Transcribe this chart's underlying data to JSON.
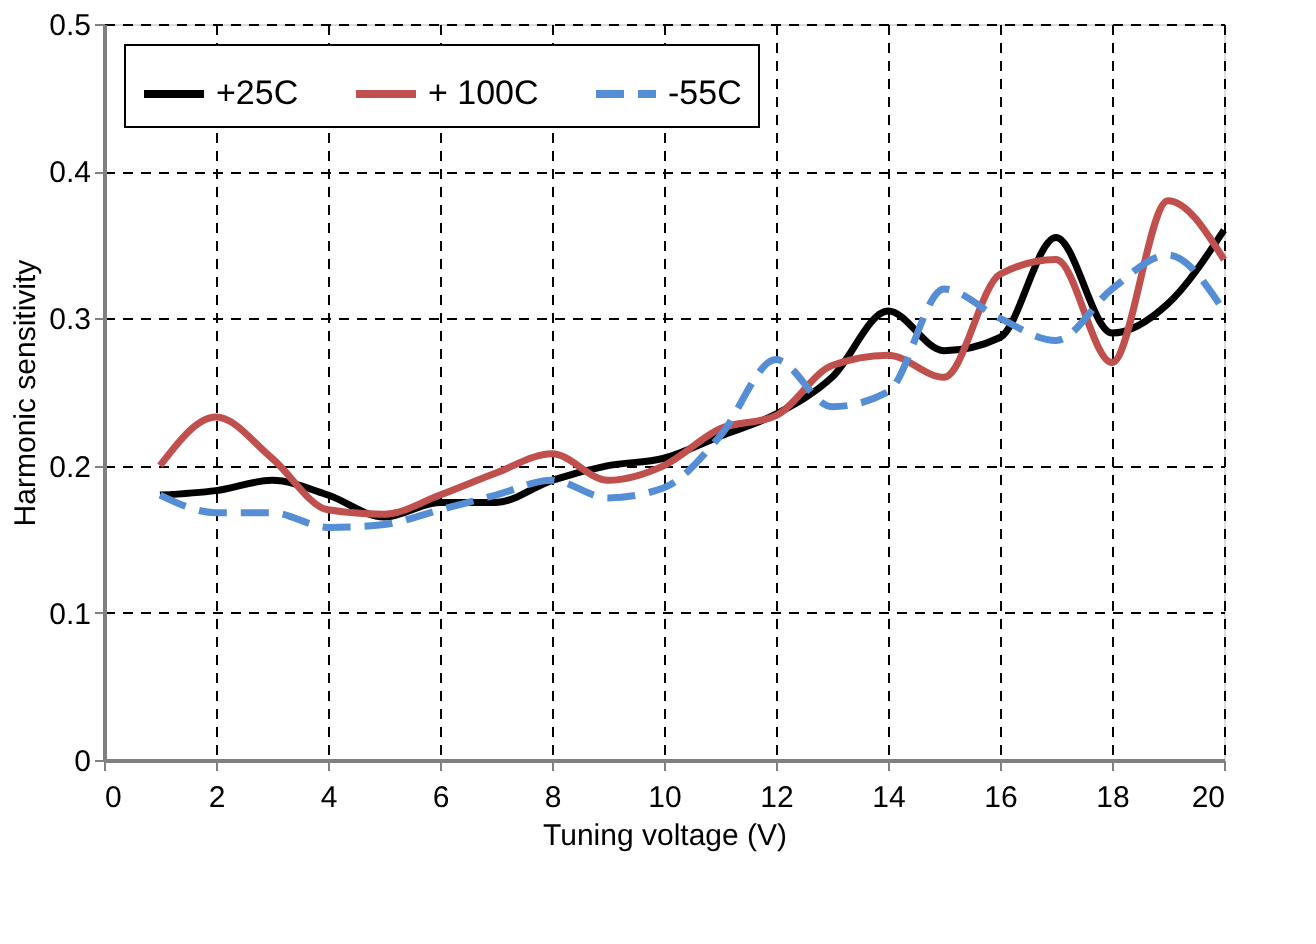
{
  "chart_data": {
    "type": "line",
    "xlabel": "Tuning voltage (V)",
    "ylabel": "Harmonic sensitivity",
    "x": [
      1,
      2,
      3,
      4,
      5,
      6,
      7,
      8,
      9,
      10,
      11,
      12,
      13,
      14,
      15,
      16,
      17,
      18,
      19,
      20
    ],
    "series": [
      {
        "name": "+25C",
        "color": "#000000",
        "line_style": "solid",
        "values": [
          0.18,
          0.183,
          0.19,
          0.18,
          0.165,
          0.175,
          0.175,
          0.19,
          0.2,
          0.205,
          0.22,
          0.235,
          0.26,
          0.305,
          0.278,
          0.287,
          0.355,
          0.29,
          0.31,
          0.36
        ]
      },
      {
        "name": "+ 100C",
        "color": "#c0504d",
        "line_style": "solid",
        "values": [
          0.2,
          0.233,
          0.205,
          0.17,
          0.167,
          0.18,
          0.195,
          0.208,
          0.19,
          0.2,
          0.225,
          0.234,
          0.268,
          0.275,
          0.26,
          0.33,
          0.34,
          0.27,
          0.38,
          0.34
        ]
      },
      {
        "name": "-55C",
        "color": "#558ed5",
        "line_style": "dashed",
        "values": [
          0.18,
          0.168,
          0.168,
          0.158,
          0.16,
          0.17,
          0.18,
          0.19,
          0.178,
          0.185,
          0.22,
          0.272,
          0.24,
          0.25,
          0.32,
          0.3,
          0.285,
          0.32,
          0.343,
          0.305
        ]
      }
    ],
    "xlim": [
      0,
      20
    ],
    "xticks": [
      0,
      2,
      4,
      6,
      8,
      10,
      12,
      14,
      16,
      18,
      20
    ],
    "ylim": [
      0,
      0.5
    ],
    "yticks": [
      0,
      0.1,
      0.2,
      0.3,
      0.4,
      0.5
    ],
    "grid": true,
    "legend": "top",
    "marker": "none"
  }
}
